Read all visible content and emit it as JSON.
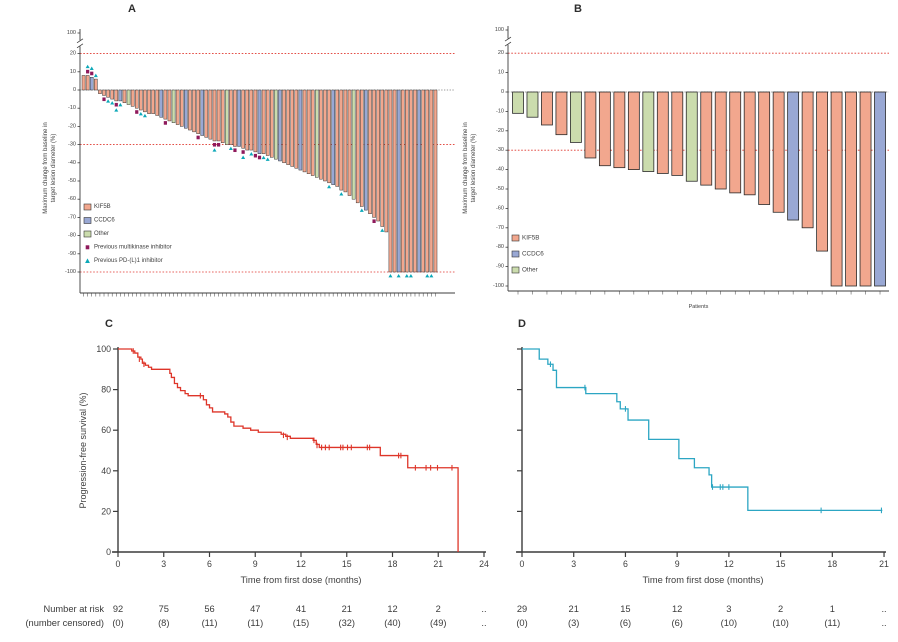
{
  "colors": {
    "kif5b": "#F2A78E",
    "ccdc6": "#99A8D4",
    "other": "#CBDCAD",
    "multikinase": "#8F1A5C",
    "pdl1": "#0CA8B8",
    "reference_line": "#DF352C",
    "km_c": "#DE3529",
    "km_d": "#2CA6C3",
    "axis": "#3C3C3C",
    "zero_line": "#777777",
    "bar_stroke": "#2B2B2B",
    "text": "#3F3F3F"
  },
  "risk_table": {
    "row1_label": "Number at risk",
    "row2_label": "(number censored)",
    "c_at_risk": [
      "92",
      "75",
      "56",
      "47",
      "41",
      "21",
      "12",
      "2",
      ".."
    ],
    "c_censored": [
      "(0)",
      "(8)",
      "(11)",
      "(11)",
      "(15)",
      "(32)",
      "(40)",
      "(49)",
      ".."
    ],
    "d_at_risk": [
      "29",
      "21",
      "15",
      "12",
      "3",
      "2",
      "1",
      ".."
    ],
    "d_censored": [
      "(0)",
      "(3)",
      "(6)",
      "(6)",
      "(10)",
      "(10)",
      "(11)",
      ".."
    ]
  },
  "chart_data": [
    {
      "id": "A",
      "type": "bar",
      "panel_label": "A",
      "ylabel": [
        "Maximum change from baseline in",
        "target lesion diameter (%)"
      ],
      "yticks": [
        100,
        20,
        10,
        0,
        -10,
        -20,
        -30,
        -40,
        -50,
        -60,
        -70,
        -80,
        -90,
        -100
      ],
      "ylim": [
        -100,
        100
      ],
      "axis_break_between": [
        20,
        100
      ],
      "ref_lines": [
        20,
        -30,
        -100
      ],
      "groups": {
        "K": "KIF5B",
        "C": "CCDC6",
        "O": "Other"
      },
      "legend": [
        {
          "label": "KIF5B",
          "swatch": "box",
          "color": "kif5b"
        },
        {
          "label": "CCDC6",
          "swatch": "box",
          "color": "ccdc6"
        },
        {
          "label": "Other",
          "swatch": "box",
          "color": "other"
        },
        {
          "label": "Previous multikinase inhibitor",
          "swatch": "square",
          "color": "multikinase"
        },
        {
          "label": "Previous PD-(L)1 inhibitor",
          "swatch": "triangle",
          "color": "pdl1"
        }
      ],
      "bars": [
        [
          8,
          "K",
          ""
        ],
        [
          8,
          "K",
          "mp"
        ],
        [
          7,
          "C",
          "mp"
        ],
        [
          6,
          "K",
          "p"
        ],
        [
          -2,
          "K",
          ""
        ],
        [
          -3,
          "K",
          "m"
        ],
        [
          -4,
          "K",
          "p"
        ],
        [
          -5,
          "K",
          "p"
        ],
        [
          -6,
          "K",
          "mp"
        ],
        [
          -6,
          "C",
          "p"
        ],
        [
          -7,
          "K",
          ""
        ],
        [
          -8,
          "O",
          ""
        ],
        [
          -9,
          "K",
          ""
        ],
        [
          -10,
          "K",
          "m"
        ],
        [
          -11,
          "K",
          "p"
        ],
        [
          -12,
          "K",
          "p"
        ],
        [
          -13,
          "K",
          ""
        ],
        [
          -13,
          "K",
          ""
        ],
        [
          -14,
          "K",
          ""
        ],
        [
          -15,
          "C",
          ""
        ],
        [
          -16,
          "K",
          "m"
        ],
        [
          -17,
          "K",
          ""
        ],
        [
          -18,
          "O",
          ""
        ],
        [
          -19,
          "K",
          ""
        ],
        [
          -20,
          "K",
          ""
        ],
        [
          -21,
          "C",
          ""
        ],
        [
          -22,
          "K",
          ""
        ],
        [
          -23,
          "K",
          ""
        ],
        [
          -24,
          "K",
          "m"
        ],
        [
          -25,
          "C",
          ""
        ],
        [
          -26,
          "K",
          ""
        ],
        [
          -27,
          "K",
          ""
        ],
        [
          -28,
          "K",
          "mp"
        ],
        [
          -28,
          "K",
          "m"
        ],
        [
          -29,
          "K",
          ""
        ],
        [
          -30,
          "O",
          ""
        ],
        [
          -30,
          "K",
          "p"
        ],
        [
          -31,
          "K",
          "m"
        ],
        [
          -31,
          "C",
          ""
        ],
        [
          -32,
          "K",
          "mp"
        ],
        [
          -33,
          "K",
          ""
        ],
        [
          -33,
          "K",
          "p"
        ],
        [
          -34,
          "K",
          "m"
        ],
        [
          -35,
          "C",
          "m"
        ],
        [
          -35,
          "K",
          "p"
        ],
        [
          -36,
          "K",
          "p"
        ],
        [
          -37,
          "K",
          ""
        ],
        [
          -38,
          "O",
          ""
        ],
        [
          -39,
          "C",
          ""
        ],
        [
          -40,
          "K",
          ""
        ],
        [
          -41,
          "K",
          ""
        ],
        [
          -42,
          "K",
          ""
        ],
        [
          -43,
          "K",
          ""
        ],
        [
          -44,
          "C",
          ""
        ],
        [
          -45,
          "K",
          ""
        ],
        [
          -46,
          "K",
          ""
        ],
        [
          -47,
          "K",
          ""
        ],
        [
          -48,
          "O",
          ""
        ],
        [
          -49,
          "K",
          ""
        ],
        [
          -50,
          "K",
          ""
        ],
        [
          -51,
          "K",
          "p"
        ],
        [
          -52,
          "C",
          ""
        ],
        [
          -53,
          "K",
          ""
        ],
        [
          -55,
          "K",
          "p"
        ],
        [
          -56,
          "K",
          ""
        ],
        [
          -58,
          "K",
          ""
        ],
        [
          -60,
          "O",
          ""
        ],
        [
          -62,
          "K",
          ""
        ],
        [
          -64,
          "K",
          "p"
        ],
        [
          -66,
          "C",
          ""
        ],
        [
          -68,
          "K",
          ""
        ],
        [
          -70,
          "K",
          "m"
        ],
        [
          -72,
          "K",
          ""
        ],
        [
          -75,
          "K",
          "p"
        ],
        [
          -78,
          "K",
          ""
        ],
        [
          -100,
          "K",
          "p"
        ],
        [
          -100,
          "K",
          ""
        ],
        [
          -100,
          "C",
          "p"
        ],
        [
          -100,
          "K",
          ""
        ],
        [
          -100,
          "K",
          "p"
        ],
        [
          -100,
          "K",
          "p"
        ],
        [
          -100,
          "K",
          ""
        ],
        [
          -100,
          "C",
          ""
        ],
        [
          -100,
          "K",
          ""
        ],
        [
          -100,
          "K",
          "p"
        ],
        [
          -100,
          "K",
          "p"
        ],
        [
          -100,
          "K",
          ""
        ]
      ]
    },
    {
      "id": "B",
      "type": "bar",
      "panel_label": "B",
      "xlabel": "Patients",
      "ylabel": [
        "Maximum change from baseline in",
        "target lesion diameter (%)"
      ],
      "yticks": [
        100,
        20,
        10,
        0,
        -10,
        -20,
        -30,
        -40,
        -50,
        -60,
        -70,
        -80,
        -90,
        -100
      ],
      "ylim": [
        -100,
        100
      ],
      "axis_break_between": [
        20,
        100
      ],
      "ref_lines": [
        20,
        -30
      ],
      "groups": {
        "K": "KIF5B",
        "C": "CCDC6",
        "O": "Other"
      },
      "legend": [
        {
          "label": "KIF5B",
          "swatch": "box",
          "color": "kif5b"
        },
        {
          "label": "CCDC6",
          "swatch": "box",
          "color": "ccdc6"
        },
        {
          "label": "Other",
          "swatch": "box",
          "color": "other"
        }
      ],
      "bars": [
        [
          -11,
          "O",
          ""
        ],
        [
          -13,
          "O",
          ""
        ],
        [
          -17,
          "K",
          ""
        ],
        [
          -22,
          "K",
          ""
        ],
        [
          -26,
          "O",
          ""
        ],
        [
          -34,
          "K",
          ""
        ],
        [
          -38,
          "K",
          ""
        ],
        [
          -39,
          "K",
          ""
        ],
        [
          -40,
          "K",
          ""
        ],
        [
          -41,
          "O",
          ""
        ],
        [
          -42,
          "K",
          ""
        ],
        [
          -43,
          "K",
          ""
        ],
        [
          -46,
          "O",
          ""
        ],
        [
          -48,
          "K",
          ""
        ],
        [
          -50,
          "K",
          ""
        ],
        [
          -52,
          "K",
          ""
        ],
        [
          -53,
          "K",
          ""
        ],
        [
          -58,
          "K",
          ""
        ],
        [
          -62,
          "K",
          ""
        ],
        [
          -66,
          "C",
          ""
        ],
        [
          -70,
          "K",
          ""
        ],
        [
          -82,
          "K",
          ""
        ],
        [
          -100,
          "K",
          ""
        ],
        [
          -100,
          "K",
          ""
        ],
        [
          -100,
          "K",
          ""
        ],
        [
          -100,
          "C",
          ""
        ]
      ]
    },
    {
      "id": "C",
      "type": "km",
      "panel_label": "C",
      "xlabel": "Time from first dose (months)",
      "ylabel": "Progression-free survival (%)",
      "xticks": [
        0,
        3,
        6,
        9,
        12,
        15,
        18,
        21,
        24
      ],
      "yticks": [
        0,
        20,
        40,
        60,
        80,
        100
      ],
      "ytick_labels": true,
      "xlim": [
        0,
        24
      ],
      "ylim": [
        0,
        100
      ],
      "start": [
        0,
        100
      ],
      "steps": [
        [
          0.9,
          99
        ],
        [
          1.1,
          98
        ],
        [
          1.3,
          96
        ],
        [
          1.5,
          95
        ],
        [
          1.6,
          93
        ],
        [
          1.8,
          92
        ],
        [
          2.0,
          91
        ],
        [
          2.2,
          90
        ],
        [
          3.4,
          88
        ],
        [
          3.5,
          86
        ],
        [
          3.7,
          83
        ],
        [
          3.9,
          81
        ],
        [
          4.1,
          79.5
        ],
        [
          4.4,
          78
        ],
        [
          4.6,
          77
        ],
        [
          5.6,
          75
        ],
        [
          5.8,
          72.5
        ],
        [
          6.0,
          71
        ],
        [
          6.2,
          69
        ],
        [
          7.0,
          68
        ],
        [
          7.2,
          66.5
        ],
        [
          7.4,
          64
        ],
        [
          7.6,
          62
        ],
        [
          8.2,
          61
        ],
        [
          8.7,
          60
        ],
        [
          9.2,
          59
        ],
        [
          10.7,
          58
        ],
        [
          11.0,
          57
        ],
        [
          11.3,
          56
        ],
        [
          12.8,
          55
        ],
        [
          13.0,
          53
        ],
        [
          13.2,
          51.5
        ],
        [
          17.2,
          47.5
        ],
        [
          19.0,
          41.5
        ]
      ],
      "censors": [
        [
          1.0,
          99
        ],
        [
          1.4,
          95
        ],
        [
          1.7,
          92.5
        ],
        [
          5.4,
          77
        ],
        [
          10.85,
          57.5
        ],
        [
          11.1,
          56.5
        ],
        [
          12.85,
          55
        ],
        [
          13.05,
          52.5
        ],
        [
          13.35,
          51.5
        ],
        [
          13.6,
          51.5
        ],
        [
          13.85,
          51.5
        ],
        [
          14.6,
          51.5
        ],
        [
          14.75,
          51.5
        ],
        [
          15.05,
          51.5
        ],
        [
          15.3,
          51.5
        ],
        [
          16.35,
          51.5
        ],
        [
          16.5,
          51.5
        ],
        [
          18.4,
          47.5
        ],
        [
          18.55,
          47.5
        ],
        [
          19.5,
          41.5
        ],
        [
          20.2,
          41.5
        ],
        [
          20.5,
          41.5
        ],
        [
          20.95,
          41.5
        ],
        [
          21.9,
          41.5
        ]
      ],
      "end_time": 22.3,
      "drop_to_zero": true
    },
    {
      "id": "D",
      "type": "km",
      "panel_label": "D",
      "xlabel": "Time from first dose (months)",
      "ylabel": "",
      "xticks": [
        0,
        3,
        6,
        9,
        12,
        15,
        18,
        21
      ],
      "yticks": [
        0,
        20,
        40,
        60,
        80,
        100
      ],
      "ytick_labels": false,
      "xlim": [
        0,
        21
      ],
      "ylim": [
        0,
        100
      ],
      "start": [
        0,
        100
      ],
      "steps": [
        [
          1.0,
          95
        ],
        [
          1.5,
          92.5
        ],
        [
          1.8,
          89.5
        ],
        [
          2.0,
          81
        ],
        [
          3.7,
          78
        ],
        [
          5.5,
          74
        ],
        [
          5.7,
          70.5
        ],
        [
          6.15,
          65
        ],
        [
          7.35,
          55.5
        ],
        [
          9.1,
          46
        ],
        [
          10.0,
          41.5
        ],
        [
          10.85,
          38
        ],
        [
          11.0,
          32
        ],
        [
          13.1,
          20.5
        ]
      ],
      "censors": [
        [
          1.65,
          92.5
        ],
        [
          3.65,
          81
        ],
        [
          6.0,
          70.5
        ],
        [
          11.05,
          32
        ],
        [
          11.5,
          32
        ],
        [
          11.65,
          32
        ],
        [
          12.0,
          32
        ],
        [
          17.35,
          20.5
        ],
        [
          20.85,
          20.5
        ]
      ],
      "end_time": 20.9,
      "drop_to_zero": false
    }
  ]
}
